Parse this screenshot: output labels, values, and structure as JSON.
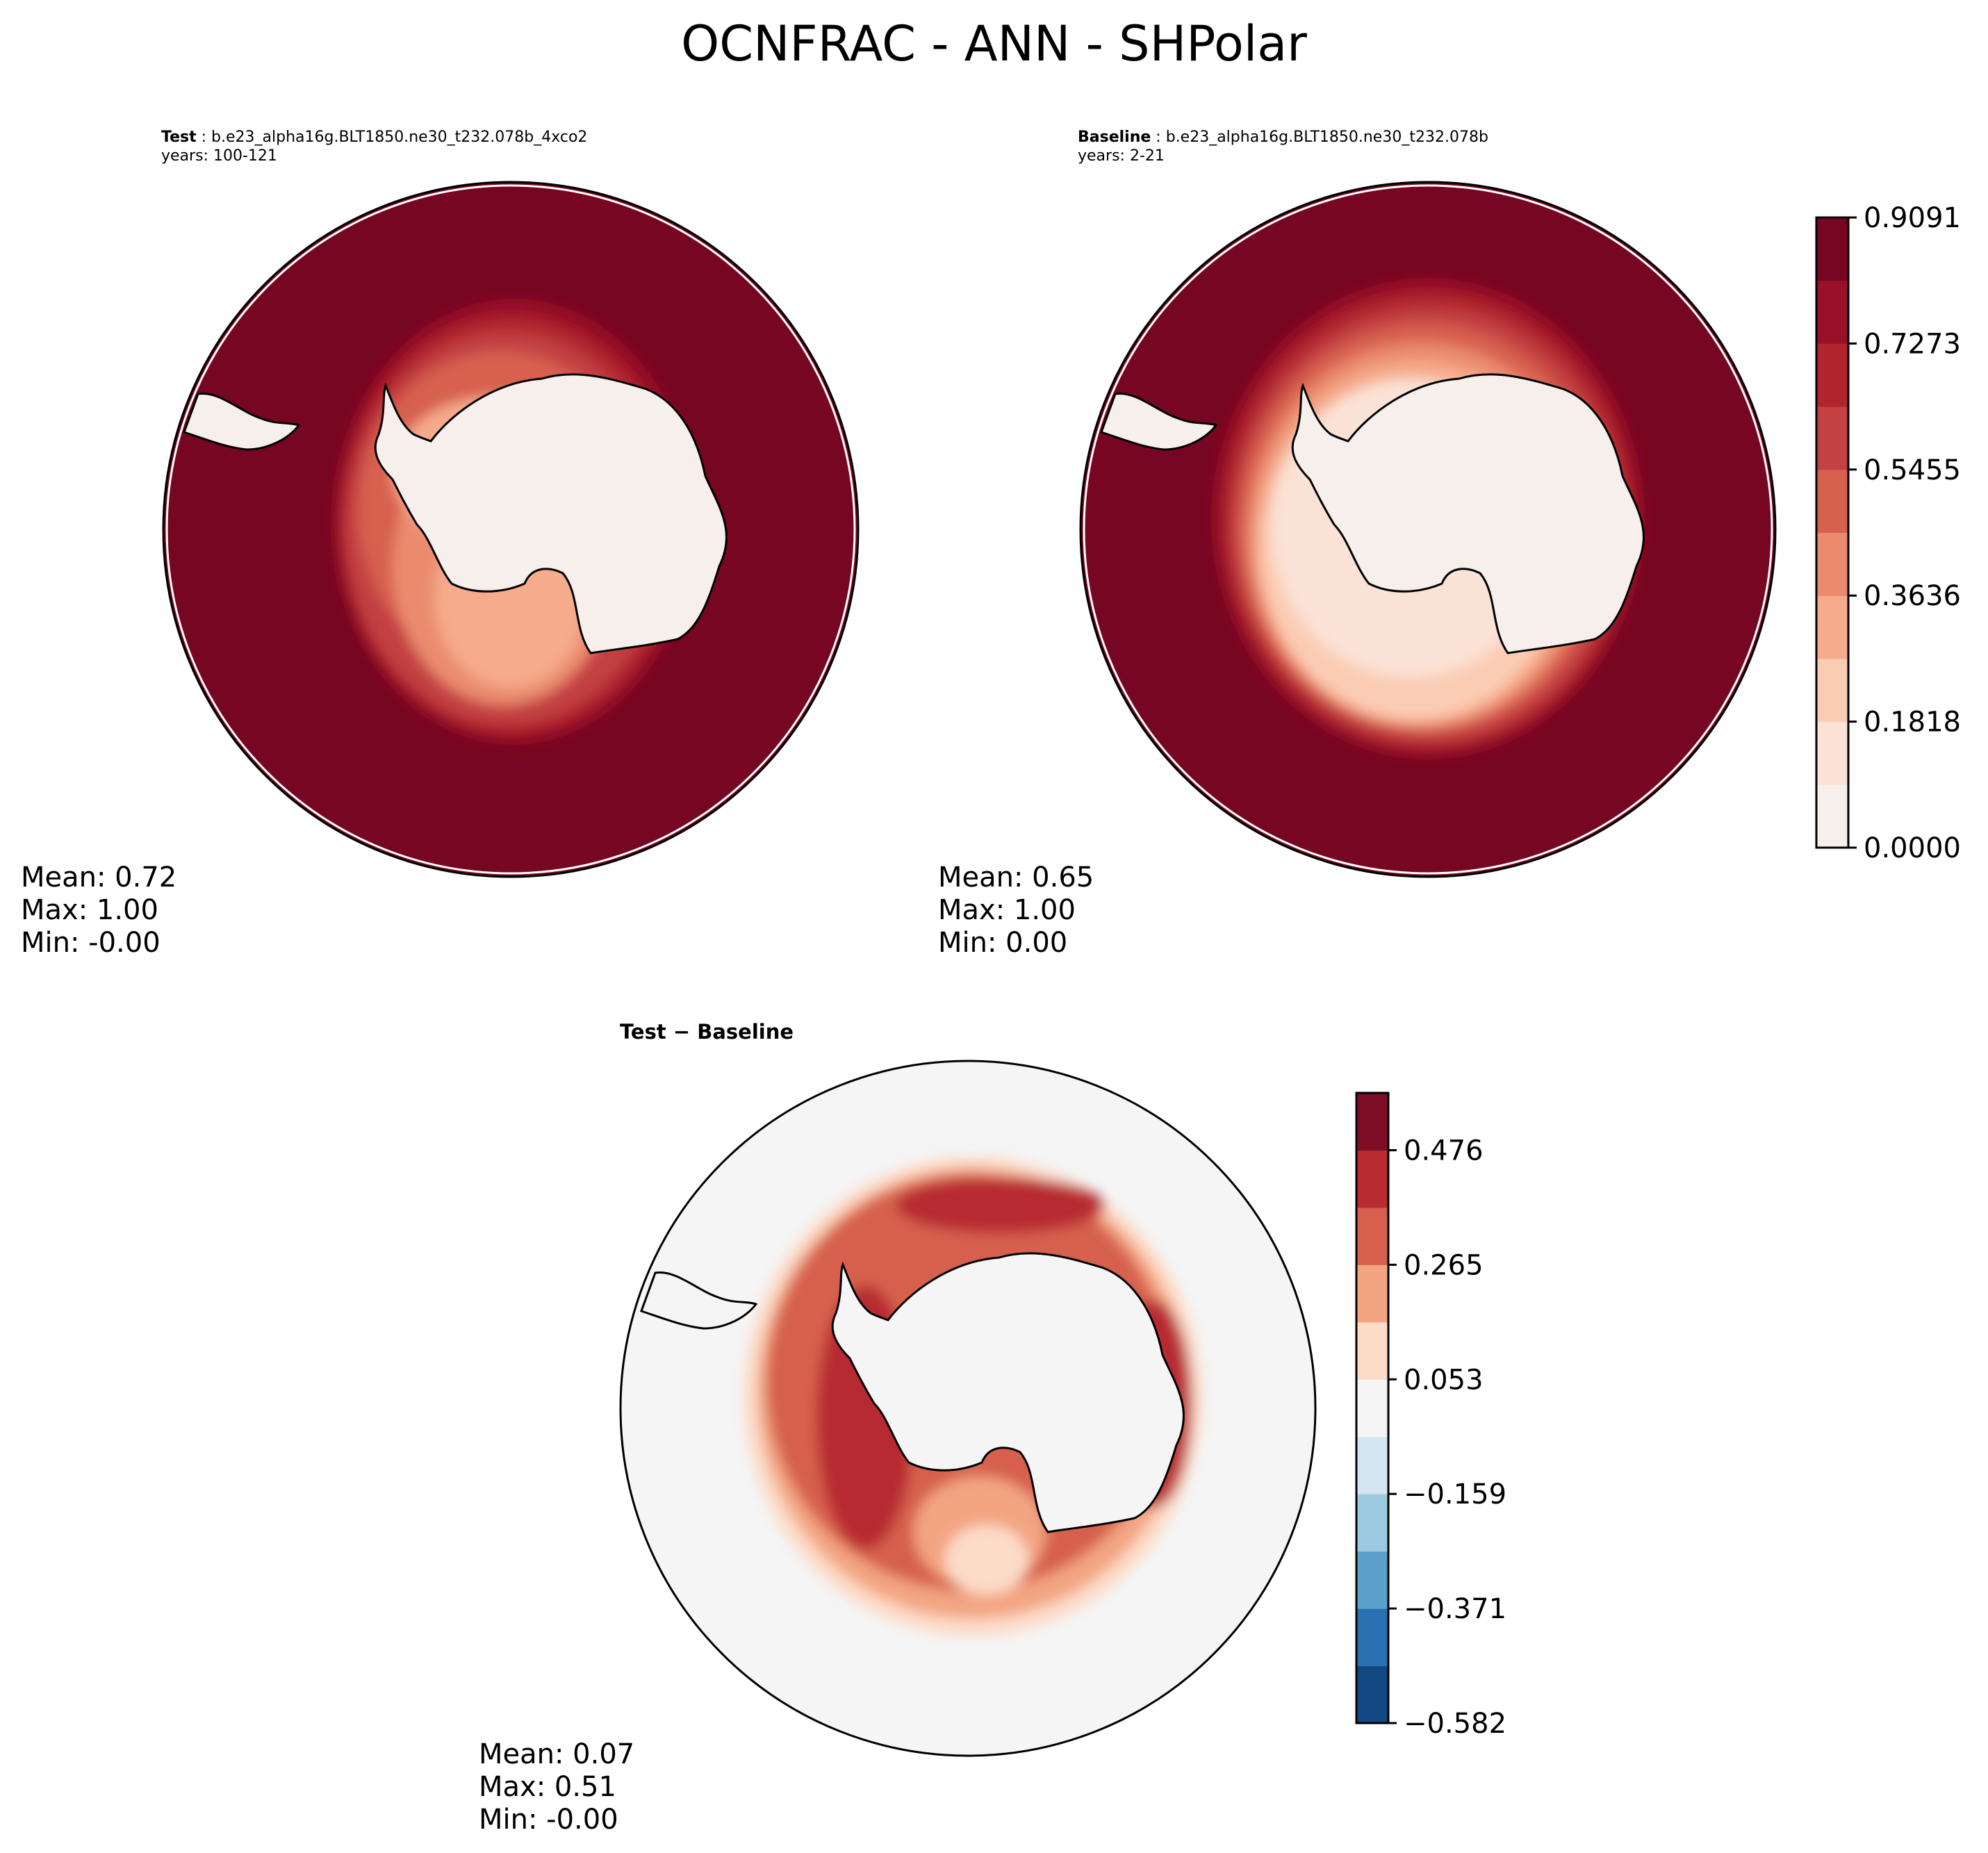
{
  "figure": {
    "title": "OCNFRAC - ANN - SHPolar"
  },
  "panels": {
    "test": {
      "label": "Test",
      "case": "b.e23_alpha16g.BLT1850.ne30_t232.078b_4xco2",
      "years": "years: 100-121",
      "stats": {
        "mean": "Mean:  0.72",
        "max": "Max:  1.00",
        "min": "Min: -0.00"
      }
    },
    "baseline": {
      "label": "Baseline",
      "case": "b.e23_alpha16g.BLT1850.ne30_t232.078b",
      "years": "years: 2-21",
      "stats": {
        "mean": "Mean:  0.65",
        "max": "Max:  1.00",
        "min": "Min:  0.00"
      }
    },
    "diff": {
      "title": "Test − Baseline",
      "stats": {
        "mean": "Mean:  0.07",
        "max": "Max:  0.51",
        "min": "Min: -0.00"
      }
    }
  },
  "chart_data": [
    {
      "type": "heatmap",
      "projection": "south polar stereographic",
      "panel": "test",
      "variable": "OCNFRAC",
      "season": "ANN",
      "mean": 0.72,
      "max": 1.0,
      "min": -0.0,
      "levels": [
        0.0,
        0.0909,
        0.1818,
        0.2727,
        0.3636,
        0.4545,
        0.5455,
        0.6364,
        0.7273,
        0.8182,
        0.9091,
        1.0
      ]
    },
    {
      "type": "heatmap",
      "projection": "south polar stereographic",
      "panel": "baseline",
      "variable": "OCNFRAC",
      "season": "ANN",
      "mean": 0.65,
      "max": 1.0,
      "min": 0.0,
      "levels": [
        0.0,
        0.0909,
        0.1818,
        0.2727,
        0.3636,
        0.4545,
        0.5455,
        0.6364,
        0.7273,
        0.8182,
        0.9091,
        1.0
      ],
      "colorbar": {
        "ticks": [
          "0.9091",
          "0.7273",
          "0.5455",
          "0.3636",
          "0.1818",
          "0.0000"
        ],
        "colors": [
          "#f6efeb",
          "#fbe2d6",
          "#fbccb4",
          "#f6ab8c",
          "#ea8b6e",
          "#d7614f",
          "#c34043",
          "#b1252f",
          "#981128",
          "#760621"
        ]
      }
    },
    {
      "type": "heatmap",
      "projection": "south polar stereographic",
      "panel": "diff",
      "variable": "OCNFRAC",
      "season": "ANN",
      "mean": 0.07,
      "max": 0.51,
      "min": -0.0,
      "levels": [
        -0.582,
        -0.476,
        -0.371,
        -0.265,
        -0.159,
        -0.053,
        0.053,
        0.159,
        0.265,
        0.371,
        0.476,
        0.582
      ],
      "colorbar": {
        "ticks": [
          "0.476",
          "0.265",
          "0.053",
          "−0.159",
          "−0.371",
          "−0.582"
        ],
        "colors": [
          "#124983",
          "#2a71b2",
          "#5ca1cb",
          "#9ccbe1",
          "#d4e6f1",
          "#f5f5f5",
          "#fcdbc7",
          "#f3a582",
          "#d6604d",
          "#b82b31",
          "#7d0e25"
        ]
      }
    }
  ],
  "colors": {
    "ocean_high": "#760621",
    "land_low": "#f6efeb",
    "diff_zero": "#f5f5f5"
  }
}
